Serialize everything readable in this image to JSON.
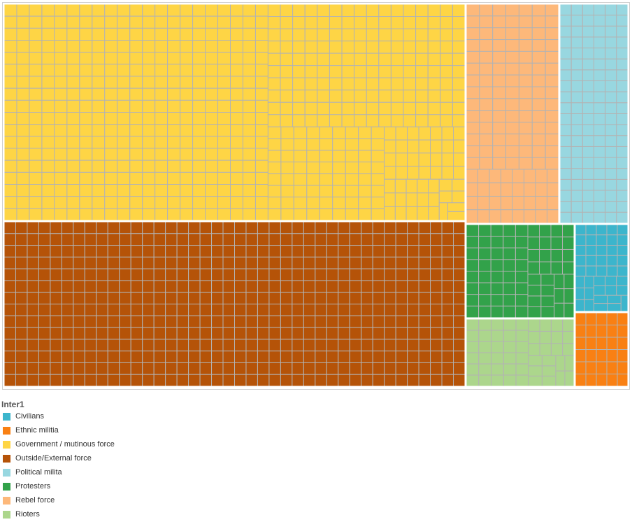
{
  "chart_data": {
    "type": "treemap",
    "legend": {
      "title": "Inter1",
      "placement": "bottom-left"
    },
    "cell_border_color": "#b3b3b3",
    "categories": [
      {
        "name": "Civilians",
        "color": "#3cb5cc",
        "count": 42
      },
      {
        "name": "Ethnic militia",
        "color": "#f98013",
        "count": 30
      },
      {
        "name": "Government / mutinous force",
        "color": "#fed545",
        "count": 660
      },
      {
        "name": "Outside/External force",
        "color": "#b55308",
        "count": 560
      },
      {
        "name": "Political milita",
        "color": "#98d7e0",
        "count": 120
      },
      {
        "name": "Protesters",
        "color": "#32a24a",
        "count": 70
      },
      {
        "name": "Rebel force",
        "color": "#fdb87a",
        "count": 130
      },
      {
        "name": "Rioters",
        "color": "#acd68c",
        "count": 52
      }
    ]
  }
}
